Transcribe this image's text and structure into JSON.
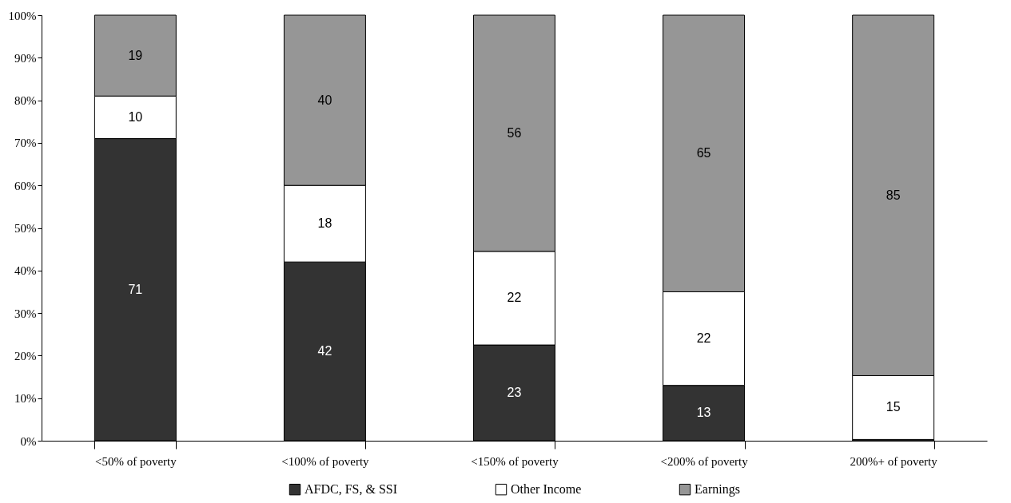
{
  "chart_data": {
    "type": "bar",
    "stacked": true,
    "categories": [
      "<50% of poverty",
      "<100% of poverty",
      "<150% of poverty",
      "<200% of poverty",
      "200%+ of poverty"
    ],
    "series": [
      {
        "name": "AFDC, FS, & SSI",
        "color": "#333333",
        "values": [
          71,
          42,
          22.5,
          13,
          0.3
        ],
        "value_labels": [
          "71",
          "42",
          "23",
          "13",
          null
        ]
      },
      {
        "name": "Other Income",
        "color": "#ffffff",
        "values": [
          10,
          18,
          22,
          22,
          15
        ],
        "value_labels": [
          "10",
          "18",
          "22",
          "22",
          "15"
        ]
      },
      {
        "name": "Earnings",
        "color": "#969696",
        "values": [
          19,
          40,
          55.5,
          65,
          84.7
        ],
        "value_labels": [
          "19",
          "40",
          "56",
          "65",
          "85"
        ]
      }
    ],
    "ylim": [
      0,
      100
    ],
    "yticks": [
      {
        "value": 0,
        "label": "0%"
      },
      {
        "value": 10,
        "label": "10%"
      },
      {
        "value": 20,
        "label": "20%"
      },
      {
        "value": 30,
        "label": "30%"
      },
      {
        "value": 40,
        "label": "40%"
      },
      {
        "value": 50,
        "label": "50%"
      },
      {
        "value": 60,
        "label": "60%"
      },
      {
        "value": 70,
        "label": "70%"
      },
      {
        "value": 80,
        "label": "80%"
      },
      {
        "value": 90,
        "label": "90%"
      },
      {
        "value": 100,
        "label": "100%"
      }
    ],
    "grid": false,
    "legend": "bottom"
  }
}
